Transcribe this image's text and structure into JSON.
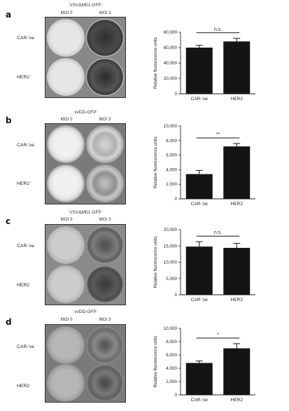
{
  "panels": [
    {
      "letter": "a",
      "virus": "VSVΔM51-GFP",
      "moi_labels": [
        "MOI 0",
        "MOI 3"
      ],
      "row_labels": [
        "CAR-'ve",
        "HER2"
      ],
      "chart_data": {
        "type": "bar",
        "categories": [
          "CAR-'ve",
          "HER2"
        ],
        "values": [
          60000,
          68000
        ],
        "errors": [
          3000,
          4000
        ],
        "ylabel": "Relative fluorescence units",
        "ylim": [
          0,
          80000
        ],
        "yticks": [
          0,
          20000,
          40000,
          60000,
          80000
        ],
        "ytick_labels": [
          "0",
          "20,000",
          "40,000",
          "60,000",
          "80,000"
        ],
        "significance": "n.s."
      }
    },
    {
      "letter": "b",
      "virus": "vvDD-GFP",
      "moi_labels": [
        "MOI 0",
        "MOI 3"
      ],
      "row_labels": [
        "CAR-'ve",
        "HER2"
      ],
      "chart_data": {
        "type": "bar",
        "categories": [
          "CAR-'ve",
          "HER2"
        ],
        "values": [
          3400,
          7200
        ],
        "errors": [
          500,
          400
        ],
        "ylabel": "Relative fluorescence units",
        "ylim": [
          0,
          10000
        ],
        "yticks": [
          0,
          2000,
          4000,
          6000,
          8000,
          10000
        ],
        "ytick_labels": [
          "0",
          "2,000",
          "4,000",
          "6,000",
          "8,000",
          "10,000"
        ],
        "significance": "**"
      }
    },
    {
      "letter": "c",
      "virus": "VSVΔM51-GFP",
      "moi_labels": [
        "MOI 0",
        "MOI 3"
      ],
      "row_labels": [
        "CAR-'ve",
        "HER2"
      ],
      "chart_data": {
        "type": "bar",
        "categories": [
          "CAR-'ve",
          "HER2"
        ],
        "values": [
          14800,
          14400
        ],
        "errors": [
          1500,
          1400
        ],
        "ylabel": "Relative fluorescence units",
        "ylim": [
          0,
          20000
        ],
        "yticks": [
          0,
          5000,
          10000,
          15000,
          20000
        ],
        "ytick_labels": [
          "0",
          "5,000",
          "10,000",
          "15,000",
          "20,000"
        ],
        "significance": "n.s."
      }
    },
    {
      "letter": "d",
      "virus": "vvDD-GFP",
      "moi_labels": [
        "MOI 0",
        "MOI 3"
      ],
      "row_labels": [
        "CAR-'ve",
        "HER2"
      ],
      "chart_data": {
        "type": "bar",
        "categories": [
          "CAR-'ve",
          "HER2"
        ],
        "values": [
          4800,
          7000
        ],
        "errors": [
          300,
          700
        ],
        "ylabel": "Relative fluorescence units",
        "ylim": [
          0,
          10000
        ],
        "yticks": [
          0,
          2000,
          4000,
          6000,
          8000,
          10000
        ],
        "ytick_labels": [
          "0",
          "2,000",
          "4,000",
          "6,000",
          "8,000",
          "10,000"
        ],
        "significance": "*"
      }
    }
  ]
}
